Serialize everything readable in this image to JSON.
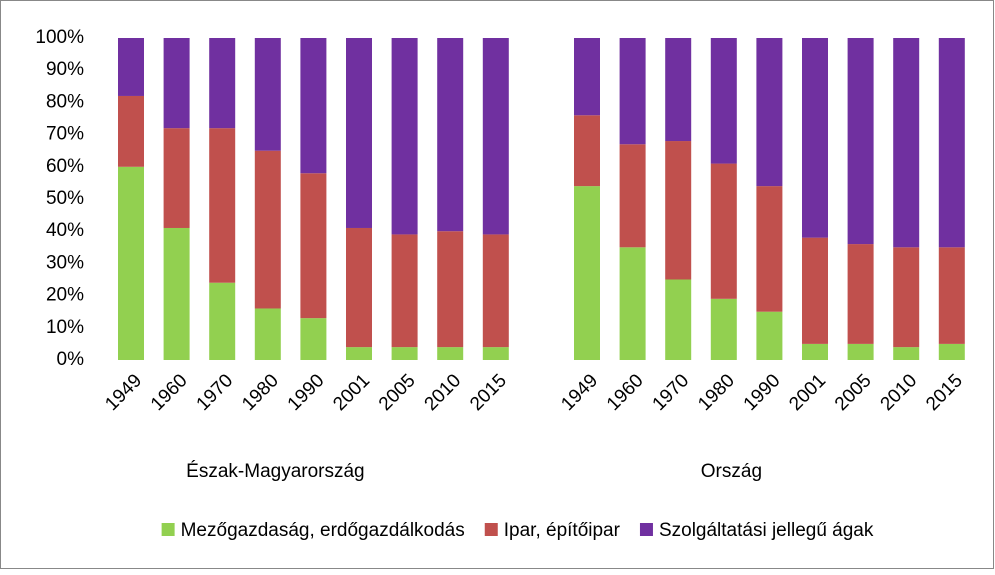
{
  "chart_data": {
    "type": "stacked_bar",
    "categories": [
      "1949",
      "1960",
      "1970",
      "1980",
      "1990",
      "2001",
      "2005",
      "2010",
      "2015",
      null,
      "1949",
      "1960",
      "1970",
      "1980",
      "1990",
      "2001",
      "2005",
      "2010",
      "2015"
    ],
    "groups": [
      "Észak-Magyarország",
      "Ország"
    ],
    "series": [
      {
        "name": "Mezőgazdaság, erdőgazdálkodás",
        "color": "#92d050",
        "values": [
          60,
          41,
          24,
          16,
          13,
          4,
          4,
          4,
          4,
          null,
          54,
          35,
          25,
          19,
          15,
          5,
          5,
          4,
          5
        ]
      },
      {
        "name": "Ipar, építőipar",
        "color": "#c0504d",
        "values": [
          22,
          31,
          48,
          49,
          45,
          37,
          35,
          36,
          35,
          null,
          22,
          32,
          43,
          42,
          39,
          33,
          31,
          31,
          30
        ]
      },
      {
        "name": "Szolgáltatási jellegű ágak",
        "color": "#7030a0",
        "values": [
          18,
          28,
          28,
          35,
          42,
          59,
          61,
          60,
          61,
          null,
          24,
          33,
          32,
          39,
          46,
          62,
          64,
          65,
          65
        ]
      }
    ],
    "ylim": [
      0,
      100
    ],
    "yticks": [
      {
        "value": 0,
        "label": "0%"
      },
      {
        "value": 10,
        "label": "10%"
      },
      {
        "value": 20,
        "label": "20%"
      },
      {
        "value": 30,
        "label": "30%"
      },
      {
        "value": 40,
        "label": "40%"
      },
      {
        "value": 50,
        "label": "50%"
      },
      {
        "value": 60,
        "label": "60%"
      },
      {
        "value": 70,
        "label": "70%"
      },
      {
        "value": 80,
        "label": "80%"
      },
      {
        "value": 90,
        "label": "90%"
      },
      {
        "value": 100,
        "label": "100%"
      }
    ],
    "legend": "bottom"
  }
}
